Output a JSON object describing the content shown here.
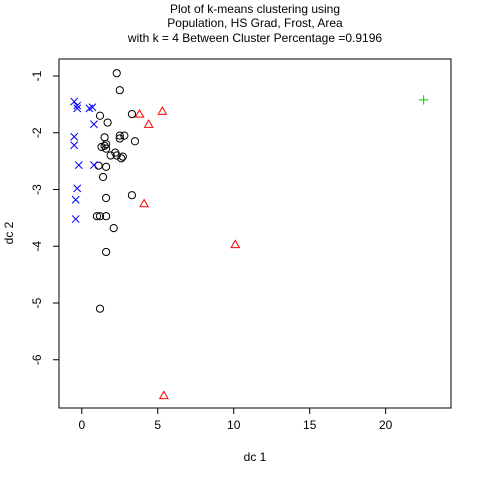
{
  "chart_data": {
    "type": "scatter",
    "title_lines": [
      "Plot of k-means clustering using",
      "Population, HS Grad, Frost, Area",
      "with  k = 4 Between Cluster Percentage =0.9196"
    ],
    "xlabel": "dc 1",
    "ylabel": "dc 2",
    "xlim": [
      -1.5,
      24.3
    ],
    "ylim": [
      -6.85,
      -0.7
    ],
    "x_ticks": [
      0,
      5,
      10,
      15,
      20
    ],
    "y_ticks": [
      -1,
      -2,
      -3,
      -4,
      -5,
      -6
    ],
    "grid": false,
    "series": [
      {
        "marker": "circle",
        "color": "#000000",
        "points": [
          [
            2.3,
            -0.95
          ],
          [
            2.5,
            -1.25
          ],
          [
            1.2,
            -1.7
          ],
          [
            3.3,
            -1.67
          ],
          [
            1.7,
            -1.82
          ],
          [
            2.5,
            -2.05
          ],
          [
            2.8,
            -2.05
          ],
          [
            1.5,
            -2.08
          ],
          [
            3.5,
            -2.15
          ],
          [
            1.6,
            -2.2
          ],
          [
            1.3,
            -2.25
          ],
          [
            1.6,
            -2.28
          ],
          [
            1.5,
            -2.23
          ],
          [
            2.2,
            -2.35
          ],
          [
            2.3,
            -2.4
          ],
          [
            2.7,
            -2.42
          ],
          [
            2.6,
            -2.45
          ],
          [
            1.9,
            -2.4
          ],
          [
            1.1,
            -2.58
          ],
          [
            1.6,
            -2.6
          ],
          [
            1.4,
            -2.78
          ],
          [
            3.3,
            -3.1
          ],
          [
            1.6,
            -3.15
          ],
          [
            1.0,
            -3.47
          ],
          [
            1.2,
            -3.47
          ],
          [
            1.6,
            -3.47
          ],
          [
            2.1,
            -3.68
          ],
          [
            1.6,
            -4.1
          ],
          [
            1.2,
            -5.1
          ],
          [
            2.5,
            -2.1
          ]
        ]
      },
      {
        "marker": "x",
        "color": "#0000ff",
        "points": [
          [
            -0.5,
            -1.45
          ],
          [
            -0.3,
            -1.52
          ],
          [
            -0.3,
            -1.57
          ],
          [
            0.5,
            -1.57
          ],
          [
            0.7,
            -1.55
          ],
          [
            0.8,
            -1.85
          ],
          [
            -0.5,
            -2.07
          ],
          [
            -0.5,
            -2.22
          ],
          [
            -0.2,
            -2.57
          ],
          [
            0.8,
            -2.57
          ],
          [
            -0.3,
            -2.98
          ],
          [
            -0.4,
            -3.18
          ],
          [
            -0.4,
            -3.52
          ]
        ]
      },
      {
        "marker": "triangle",
        "color": "#ff0000",
        "points": [
          [
            3.8,
            -1.67
          ],
          [
            5.3,
            -1.62
          ],
          [
            4.4,
            -1.85
          ],
          [
            4.1,
            -3.25
          ],
          [
            10.1,
            -3.97
          ],
          [
            5.4,
            -6.63
          ]
        ]
      },
      {
        "marker": "plus",
        "color": "#00cc00",
        "points": [
          [
            22.5,
            -1.42
          ]
        ]
      }
    ]
  }
}
